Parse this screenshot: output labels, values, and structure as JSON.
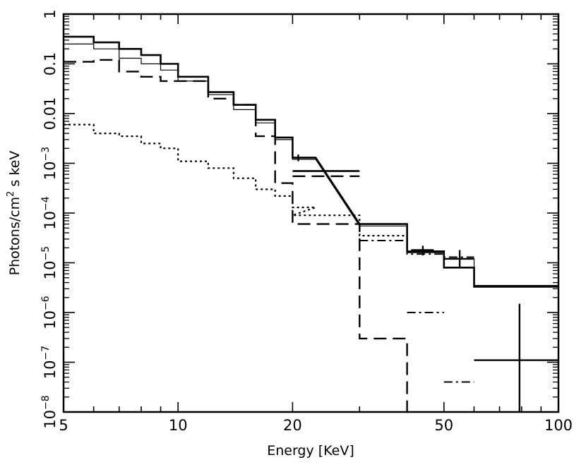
{
  "chart_data": {
    "type": "line",
    "title": "",
    "xlabel": "Energy [KeV]",
    "ylabel_parts": [
      "Photons/cm",
      "2",
      " s keV"
    ],
    "x_scale": "log",
    "y_scale": "log",
    "xlim": [
      5,
      100
    ],
    "ylim": [
      1e-08,
      1
    ],
    "grid": false,
    "legend": "none",
    "x_ticks": [
      {
        "value": 5,
        "label": "5"
      },
      {
        "value": 10,
        "label": "10"
      },
      {
        "value": 20,
        "label": "20"
      },
      {
        "value": 50,
        "label": "50"
      },
      {
        "value": 100,
        "label": "100"
      }
    ],
    "y_ticks": [
      {
        "value": 1,
        "base": "1",
        "exp": ""
      },
      {
        "value": 0.1,
        "base": "0.1",
        "exp": ""
      },
      {
        "value": 0.01,
        "base": "0.01",
        "exp": ""
      },
      {
        "value": 0.001,
        "base": "10",
        "exp": "−3"
      },
      {
        "value": 0.0001,
        "base": "10",
        "exp": "−4"
      },
      {
        "value": 1e-05,
        "base": "10",
        "exp": "−5"
      },
      {
        "value": 1e-06,
        "base": "10",
        "exp": "−6"
      },
      {
        "value": 1e-07,
        "base": "10",
        "exp": "−7"
      },
      {
        "value": 1e-08,
        "base": "10",
        "exp": "−8"
      }
    ],
    "series": [
      {
        "style": "solid-thick",
        "steps": [
          [
            5,
            6,
            0.35
          ],
          [
            6,
            7,
            0.27
          ],
          [
            7,
            8,
            0.2
          ],
          [
            8,
            9,
            0.15
          ],
          [
            9,
            10,
            0.1
          ],
          [
            10,
            12,
            0.055
          ],
          [
            12,
            14,
            0.027
          ],
          [
            14,
            16,
            0.015
          ],
          [
            16,
            18,
            0.0075
          ],
          [
            18,
            20,
            0.0033
          ],
          [
            20,
            23,
            0.0013
          ],
          [
            30,
            40,
            6e-05
          ],
          [
            40,
            50,
            1.7e-05
          ],
          [
            50,
            60,
            8e-06
          ],
          [
            60,
            100,
            3.3e-06
          ]
        ],
        "extra_segments": [
          [
            20,
            0.0007,
            30,
            0.0007
          ]
        ]
      },
      {
        "style": "solid-thin",
        "steps": [
          [
            5,
            6,
            0.25
          ],
          [
            6,
            7,
            0.2
          ],
          [
            7,
            8,
            0.13
          ],
          [
            8,
            9,
            0.1
          ],
          [
            9,
            10,
            0.075
          ],
          [
            10,
            12,
            0.045
          ],
          [
            12,
            14,
            0.024
          ],
          [
            14,
            16,
            0.012
          ],
          [
            16,
            18,
            0.0065
          ],
          [
            18,
            20,
            0.003
          ],
          [
            20,
            23,
            0.0012
          ],
          [
            30,
            40,
            5.5e-05
          ],
          [
            40,
            50,
            1.6e-05
          ],
          [
            50,
            60,
            1.2e-05
          ],
          [
            60,
            100,
            3.5e-06
          ]
        ]
      },
      {
        "style": "long-dash",
        "steps": [
          [
            5,
            6,
            0.11
          ],
          [
            6,
            7,
            0.12
          ],
          [
            7,
            8,
            0.07
          ],
          [
            8,
            9,
            0.055
          ],
          [
            9,
            10,
            0.045
          ],
          [
            10,
            12,
            0.045
          ],
          [
            12,
            14,
            0.02
          ],
          [
            14,
            16,
            0.015
          ],
          [
            16,
            18,
            0.0035
          ],
          [
            18,
            20,
            0.0004
          ],
          [
            20,
            30,
            6e-05
          ],
          [
            30,
            40,
            3e-07
          ],
          [
            40,
            40.5,
            1e-08
          ]
        ],
        "extra_segments": [
          [
            20,
            0.00055,
            30,
            0.00055
          ]
        ]
      },
      {
        "style": "dash-dot",
        "steps": [
          [
            30,
            40,
            2.8e-05
          ],
          [
            40,
            50,
            1.5e-05
          ],
          [
            50,
            60,
            1.3e-05
          ]
        ],
        "extra_segments": [
          [
            40,
            1e-06,
            50,
            1e-06
          ],
          [
            50,
            4e-08,
            60,
            4e-08
          ],
          [
            60,
            60,
            1e-08
          ]
        ]
      },
      {
        "style": "dotted",
        "steps": [
          [
            5,
            6,
            0.006
          ],
          [
            6,
            7,
            0.004
          ],
          [
            7,
            8,
            0.0035
          ],
          [
            8,
            9,
            0.0025
          ],
          [
            9,
            10,
            0.002
          ],
          [
            10,
            12,
            0.0011
          ],
          [
            12,
            14,
            0.0008
          ],
          [
            14,
            16,
            0.0005
          ],
          [
            16,
            18,
            0.0003
          ],
          [
            18,
            20,
            0.00022
          ],
          [
            20,
            23,
            0.00013
          ],
          [
            20,
            30,
            9e-05
          ],
          [
            30,
            40,
            3.5e-05
          ]
        ]
      }
    ],
    "data_points": [
      {
        "x": 20.7,
        "y": 0.0013,
        "xerr": [
          20,
          23
        ],
        "yerr": [
          0.0011,
          0.0015
        ]
      },
      {
        "x": 44,
        "y": 1.8e-05,
        "xerr": [
          41,
          47
        ],
        "yerr": [
          1.4e-05,
          2.2e-05
        ]
      },
      {
        "x": 55,
        "y": 1.2e-05,
        "xerr": [
          50,
          60
        ],
        "yerr": [
          8e-06,
          1.8e-05
        ]
      },
      {
        "x": 79,
        "y": 1.1e-07,
        "xerr": [
          60,
          100
        ],
        "yerr": [
          1e-08,
          1.5e-06
        ]
      }
    ]
  }
}
